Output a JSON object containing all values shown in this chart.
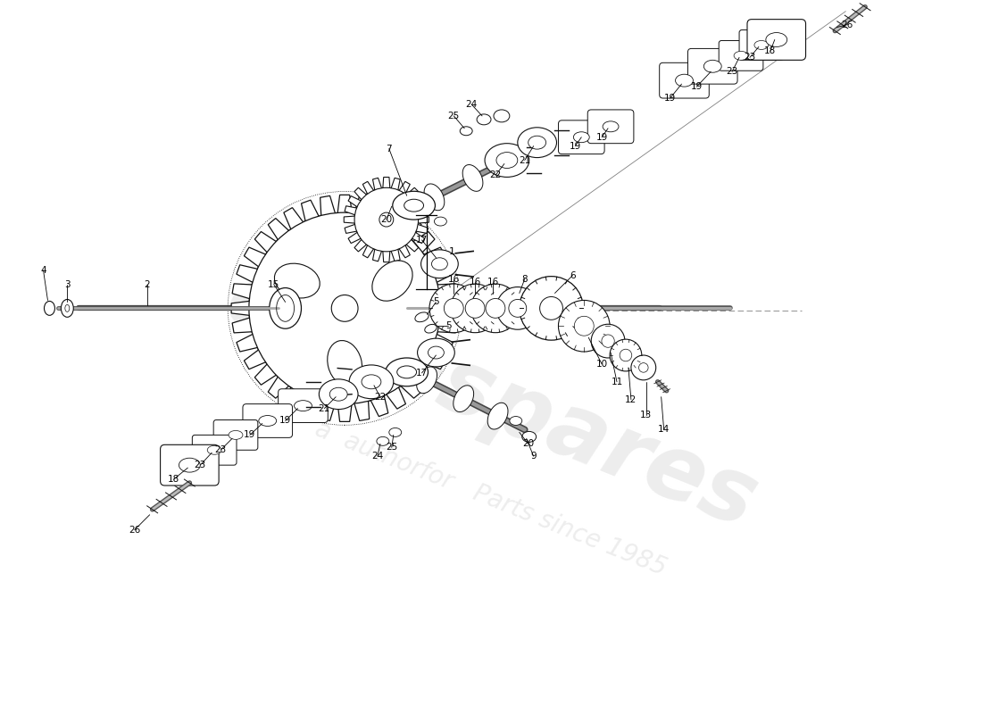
{
  "background_color": "#ffffff",
  "figsize": [
    11.0,
    8.0
  ],
  "dpi": 100,
  "xlim": [
    0,
    11
  ],
  "ylim": [
    0,
    8.0
  ],
  "gear_color": "#ffffff",
  "gear_edge": "#111111",
  "shaft_color": "#555555",
  "part_fill": "#e8e8e8",
  "part_edge": "#222222",
  "wm_text": "eurospares",
  "wm_color": "#cccccc",
  "wm_alpha": 0.35,
  "wm_size": 72,
  "wm_rot": -22,
  "wm_x": 5.5,
  "wm_y": 3.5,
  "wm2_text": "a  authorfor   Parts since 1985",
  "wm2_size": 20,
  "wm2_color": "#d0d0d0",
  "wm2_alpha": 0.38,
  "wm2_rot": -22,
  "wm2_x": 5.5,
  "wm2_y": 2.4
}
